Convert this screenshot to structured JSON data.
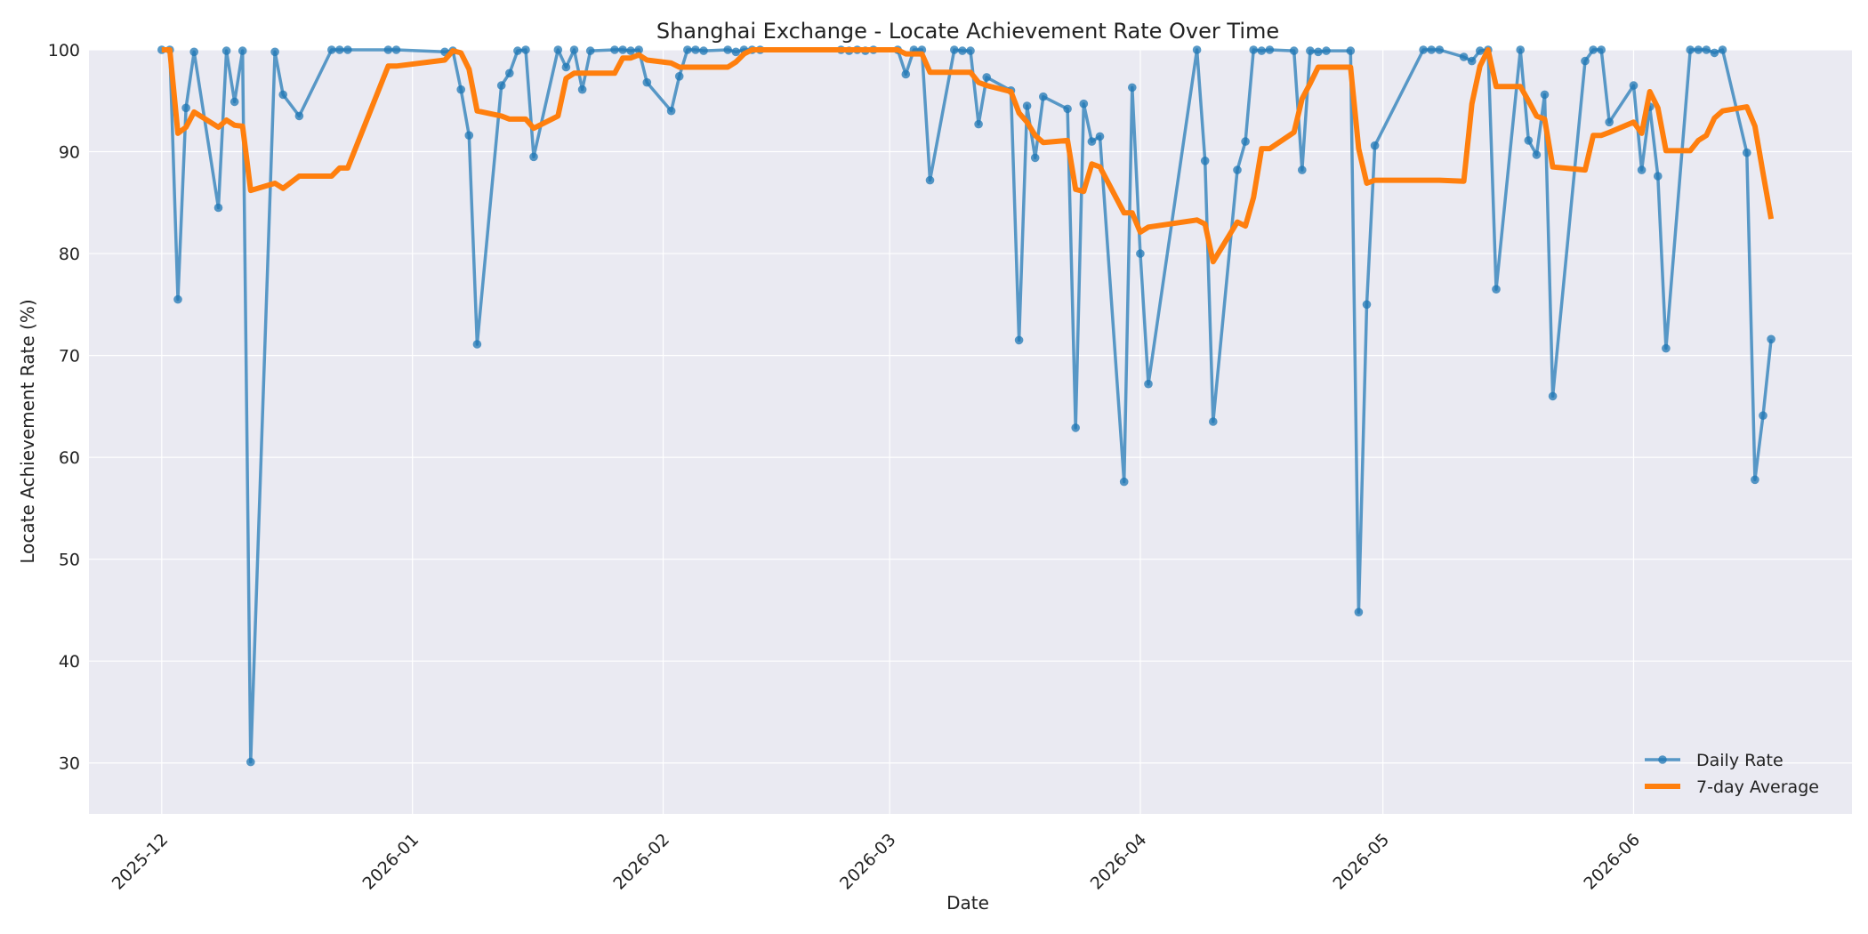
{
  "chart_data": {
    "type": "line",
    "title": "Shanghai Exchange - Locate Achievement Rate Over Time",
    "xlabel": "Date",
    "ylabel": "Locate Achievement Rate (%)",
    "ylim": [
      25,
      100
    ],
    "xlim": [
      "2025-11-22",
      "2026-06-28"
    ],
    "y_ticks": [
      30,
      40,
      50,
      60,
      70,
      80,
      90,
      100
    ],
    "x_ticks": [
      {
        "date": "2025-12-01",
        "label": "2025-12"
      },
      {
        "date": "2026-01-01",
        "label": "2026-01"
      },
      {
        "date": "2026-02-01",
        "label": "2026-02"
      },
      {
        "date": "2026-03-01",
        "label": "2026-03"
      },
      {
        "date": "2026-04-01",
        "label": "2026-04"
      },
      {
        "date": "2026-05-01",
        "label": "2026-05"
      },
      {
        "date": "2026-06-01",
        "label": "2026-06"
      }
    ],
    "grid": true,
    "legend_position": "bottom-right",
    "series": [
      {
        "name": "Daily Rate",
        "style": "line-markers",
        "color": "#1f77b4",
        "points": [
          [
            "2025-12-01",
            100
          ],
          [
            "2025-12-02",
            100
          ],
          [
            "2025-12-03",
            75.5
          ],
          [
            "2025-12-04",
            94.3
          ],
          [
            "2025-12-05",
            99.8
          ],
          [
            "2025-12-08",
            84.5
          ],
          [
            "2025-12-09",
            99.9
          ],
          [
            "2025-12-10",
            94.9
          ],
          [
            "2025-12-11",
            99.9
          ],
          [
            "2025-12-12",
            30.1
          ],
          [
            "2025-12-15",
            99.8
          ],
          [
            "2025-12-16",
            95.6
          ],
          [
            "2025-12-18",
            93.5
          ],
          [
            "2025-12-22",
            100
          ],
          [
            "2025-12-23",
            100
          ],
          [
            "2025-12-24",
            100
          ],
          [
            "2025-12-29",
            100
          ],
          [
            "2025-12-30",
            100
          ],
          [
            "2026-01-05",
            99.8
          ],
          [
            "2026-01-06",
            99.9
          ],
          [
            "2026-01-07",
            96.1
          ],
          [
            "2026-01-08",
            91.6
          ],
          [
            "2026-01-09",
            71.1
          ],
          [
            "2026-01-12",
            96.5
          ],
          [
            "2026-01-13",
            97.7
          ],
          [
            "2026-01-14",
            99.9
          ],
          [
            "2026-01-15",
            100
          ],
          [
            "2026-01-16",
            89.5
          ],
          [
            "2026-01-19",
            100
          ],
          [
            "2026-01-20",
            98.3
          ],
          [
            "2026-01-21",
            100
          ],
          [
            "2026-01-22",
            96.1
          ],
          [
            "2026-01-23",
            99.9
          ],
          [
            "2026-01-26",
            100
          ],
          [
            "2026-01-27",
            100
          ],
          [
            "2026-01-28",
            99.9
          ],
          [
            "2026-01-29",
            100
          ],
          [
            "2026-01-30",
            96.8
          ],
          [
            "2026-02-02",
            94
          ],
          [
            "2026-02-03",
            97.4
          ],
          [
            "2026-02-04",
            100
          ],
          [
            "2026-02-05",
            100
          ],
          [
            "2026-02-06",
            99.9
          ],
          [
            "2026-02-09",
            100
          ],
          [
            "2026-02-10",
            99.8
          ],
          [
            "2026-02-11",
            100
          ],
          [
            "2026-02-12",
            100
          ],
          [
            "2026-02-13",
            100
          ],
          [
            "2026-02-23",
            100
          ],
          [
            "2026-02-24",
            99.9
          ],
          [
            "2026-02-25",
            100
          ],
          [
            "2026-02-26",
            99.9
          ],
          [
            "2026-02-27",
            100
          ],
          [
            "2026-03-02",
            100
          ],
          [
            "2026-03-03",
            97.6
          ],
          [
            "2026-03-04",
            100
          ],
          [
            "2026-03-05",
            100
          ],
          [
            "2026-03-06",
            87.2
          ],
          [
            "2026-03-09",
            100
          ],
          [
            "2026-03-10",
            99.9
          ],
          [
            "2026-03-11",
            99.9
          ],
          [
            "2026-03-12",
            92.7
          ],
          [
            "2026-03-13",
            97.3
          ],
          [
            "2026-03-16",
            96
          ],
          [
            "2026-03-17",
            71.5
          ],
          [
            "2026-03-18",
            94.5
          ],
          [
            "2026-03-19",
            89.4
          ],
          [
            "2026-03-20",
            95.4
          ],
          [
            "2026-03-23",
            94.2
          ],
          [
            "2026-03-24",
            62.9
          ],
          [
            "2026-03-25",
            94.7
          ],
          [
            "2026-03-26",
            91
          ],
          [
            "2026-03-27",
            91.5
          ],
          [
            "2026-03-30",
            57.6
          ],
          [
            "2026-03-31",
            96.3
          ],
          [
            "2026-04-01",
            80
          ],
          [
            "2026-04-02",
            67.2
          ],
          [
            "2026-04-08",
            100
          ],
          [
            "2026-04-09",
            89.1
          ],
          [
            "2026-04-10",
            63.5
          ],
          [
            "2026-04-13",
            88.2
          ],
          [
            "2026-04-14",
            91
          ],
          [
            "2026-04-15",
            100
          ],
          [
            "2026-04-16",
            99.9
          ],
          [
            "2026-04-17",
            100
          ],
          [
            "2026-04-20",
            99.9
          ],
          [
            "2026-04-21",
            88.2
          ],
          [
            "2026-04-22",
            99.9
          ],
          [
            "2026-04-23",
            99.8
          ],
          [
            "2026-04-24",
            99.9
          ],
          [
            "2026-04-27",
            99.9
          ],
          [
            "2026-04-28",
            44.8
          ],
          [
            "2026-04-29",
            75
          ],
          [
            "2026-04-30",
            90.6
          ],
          [
            "2026-05-06",
            100
          ],
          [
            "2026-05-07",
            100
          ],
          [
            "2026-05-08",
            100
          ],
          [
            "2026-05-11",
            99.3
          ],
          [
            "2026-05-12",
            98.9
          ],
          [
            "2026-05-13",
            99.9
          ],
          [
            "2026-05-14",
            100
          ],
          [
            "2026-05-15",
            76.5
          ],
          [
            "2026-05-18",
            100
          ],
          [
            "2026-05-19",
            91.1
          ],
          [
            "2026-05-20",
            89.7
          ],
          [
            "2026-05-21",
            95.6
          ],
          [
            "2026-05-22",
            66
          ],
          [
            "2026-05-26",
            98.9
          ],
          [
            "2026-05-27",
            100
          ],
          [
            "2026-05-28",
            100
          ],
          [
            "2026-05-29",
            92.9
          ],
          [
            "2026-06-01",
            96.5
          ],
          [
            "2026-06-02",
            88.2
          ],
          [
            "2026-06-03",
            94.4
          ],
          [
            "2026-06-04",
            87.6
          ],
          [
            "2026-06-05",
            70.7
          ],
          [
            "2026-06-08",
            100
          ],
          [
            "2026-06-09",
            100
          ],
          [
            "2026-06-10",
            100
          ],
          [
            "2026-06-11",
            99.7
          ],
          [
            "2026-06-12",
            100
          ],
          [
            "2026-06-15",
            89.9
          ],
          [
            "2026-06-16",
            57.8
          ],
          [
            "2026-06-17",
            64.1
          ],
          [
            "2026-06-18",
            71.6
          ]
        ]
      },
      {
        "name": "7-day Average",
        "style": "line",
        "color": "#ff7f0e",
        "points": [
          [
            "2025-12-01",
            100
          ],
          [
            "2025-12-02",
            100
          ],
          [
            "2025-12-03",
            91.8
          ],
          [
            "2025-12-04",
            92.4
          ],
          [
            "2025-12-05",
            93.9
          ],
          [
            "2025-12-08",
            92.4
          ],
          [
            "2025-12-09",
            93.1
          ],
          [
            "2025-12-10",
            92.6
          ],
          [
            "2025-12-11",
            92.5
          ],
          [
            "2025-12-12",
            86.2
          ],
          [
            "2025-12-15",
            86.9
          ],
          [
            "2025-12-16",
            86.4
          ],
          [
            "2025-12-18",
            87.6
          ],
          [
            "2025-12-22",
            87.6
          ],
          [
            "2025-12-23",
            88.4
          ],
          [
            "2025-12-24",
            88.4
          ],
          [
            "2025-12-29",
            98.4
          ],
          [
            "2025-12-30",
            98.4
          ],
          [
            "2026-01-05",
            99
          ],
          [
            "2026-01-06",
            99.9
          ],
          [
            "2026-01-07",
            99.7
          ],
          [
            "2026-01-08",
            98.1
          ],
          [
            "2026-01-09",
            94
          ],
          [
            "2026-01-12",
            93.5
          ],
          [
            "2026-01-13",
            93.2
          ],
          [
            "2026-01-14",
            93.2
          ],
          [
            "2026-01-15",
            93.2
          ],
          [
            "2026-01-16",
            92.3
          ],
          [
            "2026-01-19",
            93.5
          ],
          [
            "2026-01-20",
            97.2
          ],
          [
            "2026-01-21",
            97.7
          ],
          [
            "2026-01-22",
            97.7
          ],
          [
            "2026-01-23",
            97.7
          ],
          [
            "2026-01-26",
            97.7
          ],
          [
            "2026-01-27",
            99.2
          ],
          [
            "2026-01-28",
            99.2
          ],
          [
            "2026-01-29",
            99.5
          ],
          [
            "2026-01-30",
            99
          ],
          [
            "2026-02-02",
            98.7
          ],
          [
            "2026-02-03",
            98.3
          ],
          [
            "2026-02-04",
            98.3
          ],
          [
            "2026-02-05",
            98.3
          ],
          [
            "2026-02-06",
            98.3
          ],
          [
            "2026-02-09",
            98.3
          ],
          [
            "2026-02-10",
            98.8
          ],
          [
            "2026-02-11",
            99.6
          ],
          [
            "2026-02-12",
            100
          ],
          [
            "2026-02-13",
            100
          ],
          [
            "2026-02-23",
            100
          ],
          [
            "2026-02-24",
            100
          ],
          [
            "2026-02-25",
            100
          ],
          [
            "2026-02-26",
            100
          ],
          [
            "2026-02-27",
            100
          ],
          [
            "2026-03-02",
            100
          ],
          [
            "2026-03-03",
            99.6
          ],
          [
            "2026-03-04",
            99.6
          ],
          [
            "2026-03-05",
            99.6
          ],
          [
            "2026-03-06",
            97.8
          ],
          [
            "2026-03-09",
            97.8
          ],
          [
            "2026-03-10",
            97.8
          ],
          [
            "2026-03-11",
            97.8
          ],
          [
            "2026-03-12",
            96.8
          ],
          [
            "2026-03-13",
            96.5
          ],
          [
            "2026-03-16",
            95.9
          ],
          [
            "2026-03-17",
            93.8
          ],
          [
            "2026-03-18",
            92.9
          ],
          [
            "2026-03-19",
            91.6
          ],
          [
            "2026-03-20",
            90.9
          ],
          [
            "2026-03-23",
            91.1
          ],
          [
            "2026-03-24",
            86.3
          ],
          [
            "2026-03-25",
            86.1
          ],
          [
            "2026-03-26",
            88.8
          ],
          [
            "2026-03-27",
            88.5
          ],
          [
            "2026-03-30",
            84
          ],
          [
            "2026-03-31",
            84
          ],
          [
            "2026-04-01",
            82.1
          ],
          [
            "2026-04-02",
            82.6
          ],
          [
            "2026-04-08",
            83.3
          ],
          [
            "2026-04-09",
            82.9
          ],
          [
            "2026-04-10",
            79.2
          ],
          [
            "2026-04-13",
            83.1
          ],
          [
            "2026-04-14",
            82.7
          ],
          [
            "2026-04-15",
            85.5
          ],
          [
            "2026-04-16",
            90.3
          ],
          [
            "2026-04-17",
            90.3
          ],
          [
            "2026-04-20",
            91.9
          ],
          [
            "2026-04-21",
            95.2
          ],
          [
            "2026-04-22",
            96.7
          ],
          [
            "2026-04-23",
            98.3
          ],
          [
            "2026-04-24",
            98.3
          ],
          [
            "2026-04-27",
            98.3
          ],
          [
            "2026-04-28",
            90.3
          ],
          [
            "2026-04-29",
            86.9
          ],
          [
            "2026-04-30",
            87.2
          ],
          [
            "2026-05-06",
            87.2
          ],
          [
            "2026-05-07",
            87.2
          ],
          [
            "2026-05-08",
            87.2
          ],
          [
            "2026-05-11",
            87.1
          ],
          [
            "2026-05-12",
            94.7
          ],
          [
            "2026-05-13",
            98.4
          ],
          [
            "2026-05-14",
            100
          ],
          [
            "2026-05-15",
            96.4
          ],
          [
            "2026-05-18",
            96.4
          ],
          [
            "2026-05-19",
            95
          ],
          [
            "2026-05-20",
            93.5
          ],
          [
            "2026-05-21",
            93.2
          ],
          [
            "2026-05-22",
            88.5
          ],
          [
            "2026-05-26",
            88.2
          ],
          [
            "2026-05-27",
            91.6
          ],
          [
            "2026-05-28",
            91.6
          ],
          [
            "2026-05-29",
            91.9
          ],
          [
            "2026-06-01",
            92.9
          ],
          [
            "2026-06-02",
            91.8
          ],
          [
            "2026-06-03",
            95.9
          ],
          [
            "2026-06-04",
            94.3
          ],
          [
            "2026-06-05",
            90.1
          ],
          [
            "2026-06-08",
            90.1
          ],
          [
            "2026-06-09",
            91.1
          ],
          [
            "2026-06-10",
            91.6
          ],
          [
            "2026-06-11",
            93.3
          ],
          [
            "2026-06-12",
            94
          ],
          [
            "2026-06-15",
            94.4
          ],
          [
            "2026-06-16",
            92.5
          ],
          [
            "2026-06-17",
            87.9
          ],
          [
            "2026-06-18",
            83.4
          ]
        ]
      }
    ]
  }
}
